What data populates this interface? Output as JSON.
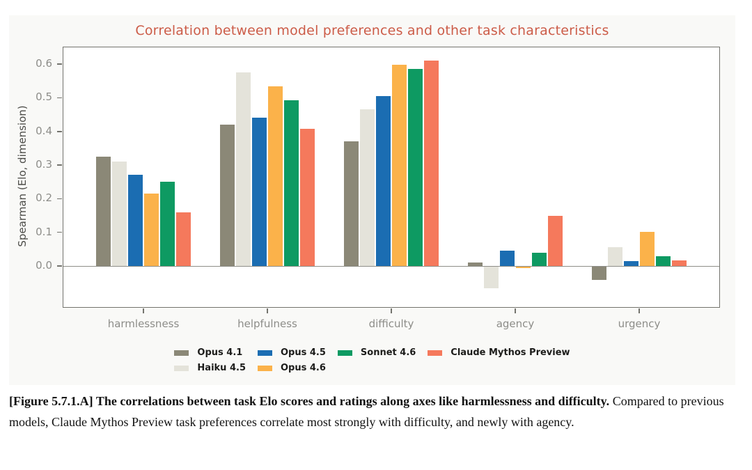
{
  "figure": {
    "colors": {
      "title": "#cc5c48",
      "figure_background": "#f9f9f7",
      "plot_background": "#ffffff",
      "axis_spine": "#73736d",
      "tick_label": "#8d8d89",
      "axis_label": "#4c4c48",
      "zero_line": "#8e8e88",
      "legend_text": "#1c1c1a"
    }
  },
  "chart_data": {
    "type": "bar",
    "title": "Correlation between model preferences and other task characteristics",
    "xlabel": "",
    "ylabel": "Spearman (Elo, dimension)",
    "categories": [
      "harmlessness",
      "helpfulness",
      "difficulty",
      "agency",
      "urgency"
    ],
    "series": [
      {
        "name": "Opus 4.1",
        "color": "#8b8877",
        "values": [
          0.325,
          0.42,
          0.37,
          0.01,
          -0.04
        ]
      },
      {
        "name": "Haiku 4.5",
        "color": "#e4e3da",
        "values": [
          0.31,
          0.575,
          0.465,
          -0.065,
          0.055
        ]
      },
      {
        "name": "Opus 4.5",
        "color": "#1b6db2",
        "values": [
          0.272,
          0.44,
          0.505,
          0.045,
          0.015
        ]
      },
      {
        "name": "Opus 4.6",
        "color": "#fbb24a",
        "values": [
          0.215,
          0.535,
          0.598,
          -0.005,
          0.102
        ]
      },
      {
        "name": "Sonnet 4.6",
        "color": "#0e9a62",
        "values": [
          0.25,
          0.493,
          0.585,
          0.04,
          0.03
        ]
      },
      {
        "name": "Claude Mythos Preview",
        "color": "#f5795c",
        "values": [
          0.16,
          0.408,
          0.61,
          0.15,
          0.016
        ]
      }
    ],
    "yticks": [
      0.0,
      0.1,
      0.2,
      0.3,
      0.4,
      0.5,
      0.6
    ],
    "ylim": [
      -0.122,
      0.65
    ],
    "grid": false,
    "legend_position": "bottom",
    "legend_ncol": 4
  },
  "caption": {
    "bold": "[Figure 5.7.1.A] The correlations between task Elo scores and ratings along axes like harmlessness and difficulty.",
    "regular": " Compared to previous models, Claude Mythos Preview task preferences correlate most strongly with difficulty, and newly with agency."
  }
}
